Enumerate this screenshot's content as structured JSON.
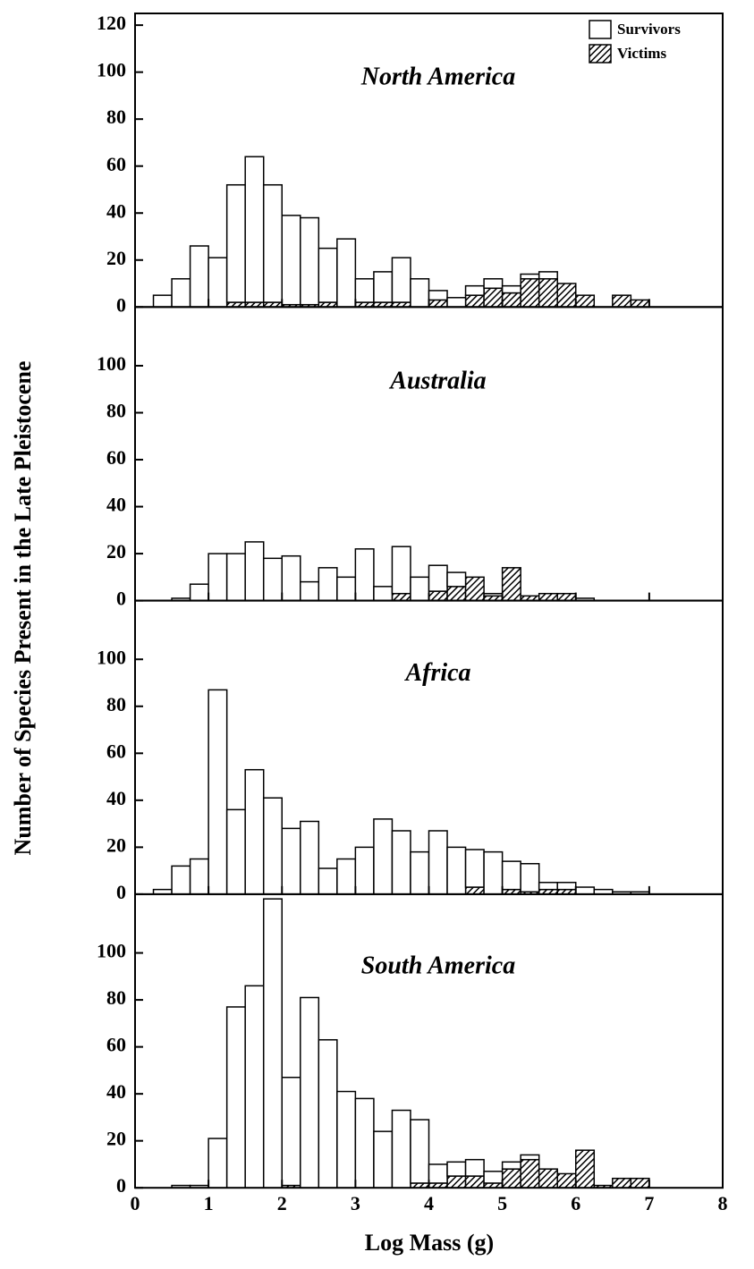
{
  "chart_data": [
    {
      "type": "histogram",
      "title": "North America",
      "ylabel": "Number of Species Present in the Late Pleistocene",
      "bins": [
        0.25,
        0.5,
        0.75,
        1,
        1.25,
        1.5,
        1.75,
        2,
        2.25,
        2.5,
        2.75,
        3,
        3.25,
        3.5,
        3.75,
        4,
        4.25,
        4.5,
        4.75,
        5,
        5.25,
        5.5,
        5.75,
        6,
        6.25,
        6.5,
        6.75,
        7
      ],
      "series": [
        {
          "name": "Victims",
          "color": "#000000",
          "hatch": true,
          "values": [
            0,
            0,
            0,
            0,
            2,
            2,
            2,
            1,
            1,
            2,
            0,
            2,
            2,
            2,
            0,
            3,
            0,
            5,
            8,
            6,
            12,
            12,
            10,
            5,
            0,
            5,
            3
          ]
        },
        {
          "name": "Survivors",
          "color": "#ffffff",
          "hatch": false,
          "values": [
            5,
            12,
            26,
            21,
            50,
            62,
            50,
            38,
            37,
            23,
            29,
            10,
            13,
            19,
            12,
            4,
            4,
            4,
            4,
            3,
            2,
            3,
            0,
            0,
            0,
            0,
            0
          ]
        }
      ],
      "legend": "upper right",
      "stacked": true,
      "xlim": [
        0,
        8
      ],
      "ylim": [
        0,
        125
      ],
      "yticks": [
        0,
        20,
        40,
        60,
        80,
        100,
        120
      ]
    },
    {
      "type": "histogram",
      "title": "Australia",
      "bins": [
        0.25,
        0.5,
        0.75,
        1,
        1.25,
        1.5,
        1.75,
        2,
        2.25,
        2.5,
        2.75,
        3,
        3.25,
        3.5,
        3.75,
        4,
        4.25,
        4.5,
        4.75,
        5,
        5.25,
        5.5,
        5.75,
        6,
        6.25,
        6.5,
        6.75,
        7
      ],
      "series": [
        {
          "color": "#000000",
          "hatch": true,
          "values": [
            0,
            0,
            0,
            0,
            0,
            0,
            0,
            0,
            0,
            0,
            0,
            0,
            0,
            3,
            0,
            4,
            6,
            10,
            2,
            14,
            2,
            3,
            3,
            0,
            0,
            0,
            0
          ]
        },
        {
          "color": "#ffffff",
          "hatch": false,
          "values": [
            0,
            1,
            7,
            20,
            20,
            25,
            18,
            19,
            8,
            14,
            10,
            22,
            6,
            20,
            10,
            11,
            6,
            0,
            1,
            0,
            0,
            0,
            0,
            1,
            0,
            0,
            0
          ]
        }
      ],
      "stacked": true,
      "xlim": [
        0,
        8
      ],
      "ylim": [
        0,
        125
      ],
      "yticks": [
        0,
        20,
        40,
        60,
        80,
        100
      ]
    },
    {
      "type": "histogram",
      "title": "Africa",
      "bins": [
        0.25,
        0.5,
        0.75,
        1,
        1.25,
        1.5,
        1.75,
        2,
        2.25,
        2.5,
        2.75,
        3,
        3.25,
        3.5,
        3.75,
        4,
        4.25,
        4.5,
        4.75,
        5,
        5.25,
        5.5,
        5.75,
        6,
        6.25,
        6.5,
        6.75,
        7
      ],
      "series": [
        {
          "color": "#000000",
          "hatch": true,
          "values": [
            0,
            0,
            0,
            0,
            0,
            0,
            0,
            0,
            0,
            0,
            0,
            0,
            0,
            0,
            0,
            0,
            0,
            3,
            0,
            2,
            1,
            2,
            2,
            0,
            0,
            0,
            0
          ]
        },
        {
          "color": "#ffffff",
          "hatch": false,
          "values": [
            2,
            12,
            15,
            87,
            36,
            53,
            41,
            28,
            31,
            11,
            15,
            20,
            32,
            27,
            18,
            27,
            20,
            16,
            18,
            12,
            12,
            3,
            3,
            3,
            2,
            1,
            1
          ]
        }
      ],
      "stacked": true,
      "xlim": [
        0,
        8
      ],
      "ylim": [
        0,
        125
      ],
      "yticks": [
        0,
        20,
        40,
        60,
        80,
        100
      ]
    },
    {
      "type": "histogram",
      "title": "South America",
      "xlabel": "Log Mass (g)",
      "bins": [
        0.25,
        0.5,
        0.75,
        1,
        1.25,
        1.5,
        1.75,
        2,
        2.25,
        2.5,
        2.75,
        3,
        3.25,
        3.5,
        3.75,
        4,
        4.25,
        4.5,
        4.75,
        5,
        5.25,
        5.5,
        5.75,
        6,
        6.25,
        6.5,
        6.75,
        7
      ],
      "series": [
        {
          "color": "#000000",
          "hatch": true,
          "values": [
            0,
            0,
            0,
            0,
            0,
            0,
            0,
            1,
            0,
            0,
            0,
            0,
            0,
            0,
            2,
            2,
            5,
            5,
            2,
            8,
            12,
            8,
            6,
            16,
            1,
            4,
            4
          ]
        },
        {
          "color": "#ffffff",
          "hatch": false,
          "values": [
            0,
            1,
            1,
            21,
            77,
            86,
            123,
            46,
            81,
            63,
            41,
            38,
            24,
            33,
            27,
            8,
            6,
            7,
            5,
            3,
            2,
            0,
            0,
            0,
            0,
            0,
            0
          ]
        }
      ],
      "stacked": true,
      "xlim": [
        0,
        8
      ],
      "ylim": [
        0,
        125
      ],
      "yticks": [
        0,
        20,
        40,
        60,
        80,
        100
      ],
      "xticks": [
        0,
        1,
        2,
        3,
        4,
        5,
        6,
        7,
        8
      ]
    }
  ]
}
